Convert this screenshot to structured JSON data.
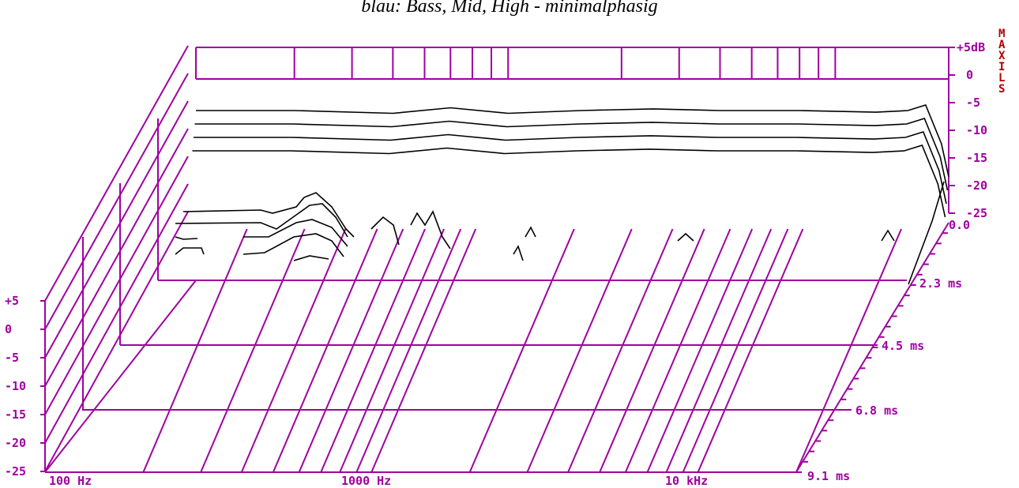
{
  "chart_data": {
    "type": "waterfall",
    "title": "blau: Bass, Mid, High - minimalphasig",
    "brand": "MAXILS",
    "colors": {
      "grid": "#a000a0",
      "curve": "#000000",
      "brand": "#b00000"
    },
    "x_axis": {
      "scale": "log",
      "range_hz": [
        100,
        20000
      ],
      "labels": [
        {
          "text": "100 Hz",
          "hz": 100
        },
        {
          "text": "1000 Hz",
          "hz": 1000
        },
        {
          "text": "10 kHz",
          "hz": 10000
        }
      ]
    },
    "y_axis": {
      "unit": "dB",
      "range": [
        -25,
        5
      ],
      "tick_labels_right": [
        "+5dB",
        "0",
        "-5",
        "-10",
        "-15",
        "-20",
        "-25"
      ],
      "tick_labels_left": [
        "+5",
        "0",
        "-5",
        "-10",
        "-15",
        "-20",
        "-25"
      ]
    },
    "time_axis": {
      "unit": "ms",
      "labels": [
        "0.0",
        "2.3 ms",
        "4.5 ms",
        "6.8 ms",
        "9.1 ms"
      ]
    },
    "slices": [
      {
        "t_ms": 0.0,
        "x_hz": [
          100,
          200,
          400,
          600,
          900,
          1500,
          2500,
          4000,
          7000,
          12000,
          15000,
          17000,
          19000,
          20000
        ],
        "db": [
          0,
          0,
          -0.5,
          0.5,
          -0.5,
          0,
          0.3,
          0,
          0,
          -0.3,
          0,
          1,
          -6,
          -12
        ]
      },
      {
        "t_ms": 0.15,
        "x_hz": [
          100,
          200,
          400,
          600,
          900,
          1500,
          2500,
          4000,
          7000,
          12000,
          15000,
          17000,
          19000,
          20000
        ],
        "db": [
          -1,
          -1,
          -1.5,
          -0.5,
          -1.5,
          -1,
          -0.7,
          -1,
          -1,
          -1.3,
          -1,
          0,
          -7,
          -13
        ]
      },
      {
        "t_ms": 0.3,
        "x_hz": [
          100,
          200,
          400,
          600,
          900,
          1500,
          2500,
          4000,
          7000,
          12000,
          15000,
          17000,
          19000,
          20000
        ],
        "db": [
          -2,
          -2,
          -2.5,
          -1.5,
          -2.5,
          -2,
          -1.7,
          -2,
          -2,
          -2.3,
          -2,
          -1,
          -8,
          -14
        ]
      },
      {
        "t_ms": 0.45,
        "x_hz": [
          100,
          200,
          400,
          600,
          900,
          1500,
          2500,
          4000,
          7000,
          12000,
          15000,
          17000,
          19000,
          20000
        ],
        "db": [
          -3,
          -3,
          -3.5,
          -2.5,
          -3.5,
          -3,
          -2.7,
          -3,
          -3,
          -3.3,
          -3,
          -2,
          -9,
          -15
        ]
      }
    ]
  }
}
